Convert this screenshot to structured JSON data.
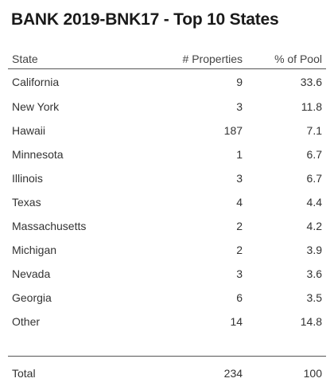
{
  "title": "BANK 2019-BNK17 - Top 10 States",
  "chart_data": {
    "type": "table",
    "title": "BANK 2019-BNK17 - Top 10 States",
    "columns": [
      "State",
      "# Properties",
      "% of Pool"
    ],
    "rows": [
      {
        "state": "California",
        "properties": "9",
        "pct": "33.6"
      },
      {
        "state": "New York",
        "properties": "3",
        "pct": "11.8"
      },
      {
        "state": "Hawaii",
        "properties": "187",
        "pct": "7.1"
      },
      {
        "state": "Minnesota",
        "properties": "1",
        "pct": "6.7"
      },
      {
        "state": "Illinois",
        "properties": "3",
        "pct": "6.7"
      },
      {
        "state": "Texas",
        "properties": "4",
        "pct": "4.4"
      },
      {
        "state": "Massachusetts",
        "properties": "2",
        "pct": "4.2"
      },
      {
        "state": "Michigan",
        "properties": "2",
        "pct": "3.9"
      },
      {
        "state": "Nevada",
        "properties": "3",
        "pct": "3.6"
      },
      {
        "state": "Georgia",
        "properties": "6",
        "pct": "3.5"
      },
      {
        "state": "Other",
        "properties": "14",
        "pct": "14.8"
      }
    ],
    "total": {
      "label": "Total",
      "properties": "234",
      "pct": "100"
    }
  }
}
